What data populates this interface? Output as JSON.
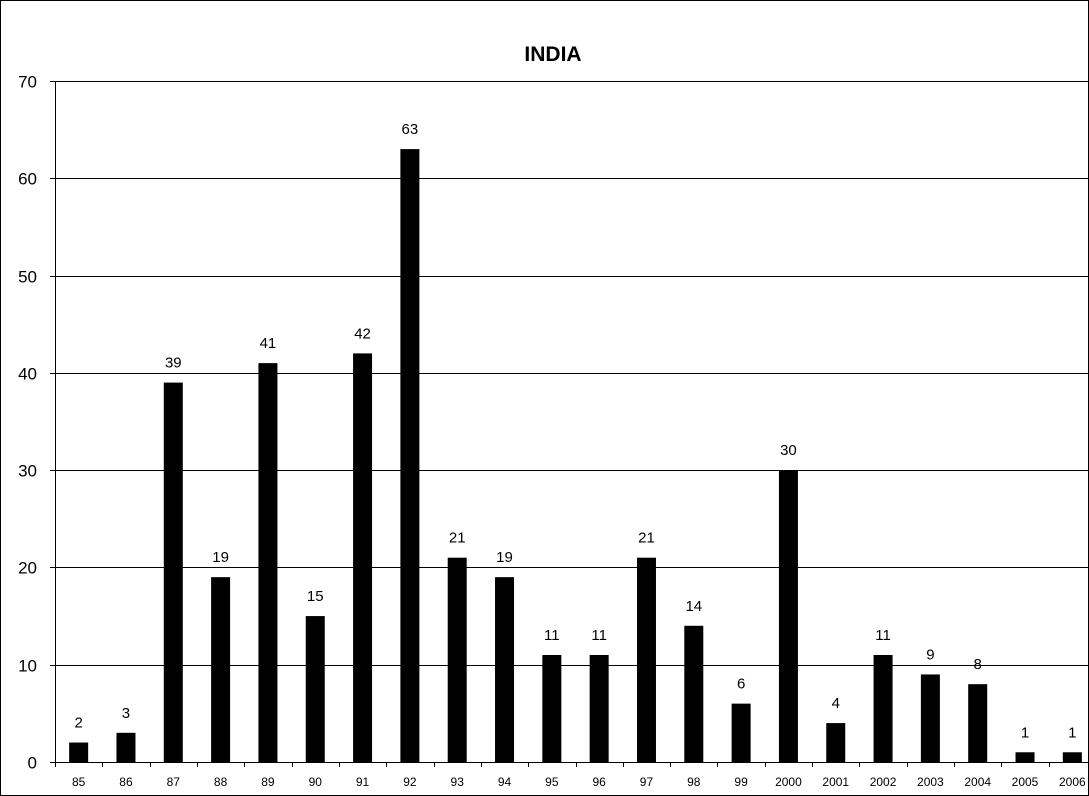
{
  "chart_data": {
    "type": "bar",
    "title": "INDIA",
    "xlabel": "",
    "ylabel": "",
    "categories": [
      "85",
      "86",
      "87",
      "88",
      "89",
      "90",
      "91",
      "92",
      "93",
      "94",
      "95",
      "96",
      "97",
      "98",
      "99",
      "2000",
      "2001",
      "2002",
      "2003",
      "2004",
      "2005",
      "2006"
    ],
    "values": [
      2,
      3,
      39,
      19,
      41,
      15,
      42,
      63,
      21,
      19,
      11,
      11,
      21,
      14,
      6,
      30,
      4,
      11,
      9,
      8,
      1,
      1
    ],
    "ylim": [
      0,
      70
    ],
    "yticks": [
      0,
      10,
      20,
      30,
      40,
      50,
      60,
      70
    ],
    "grid": true,
    "legend": "none",
    "bar_color": "#000000",
    "data_labels": true
  }
}
